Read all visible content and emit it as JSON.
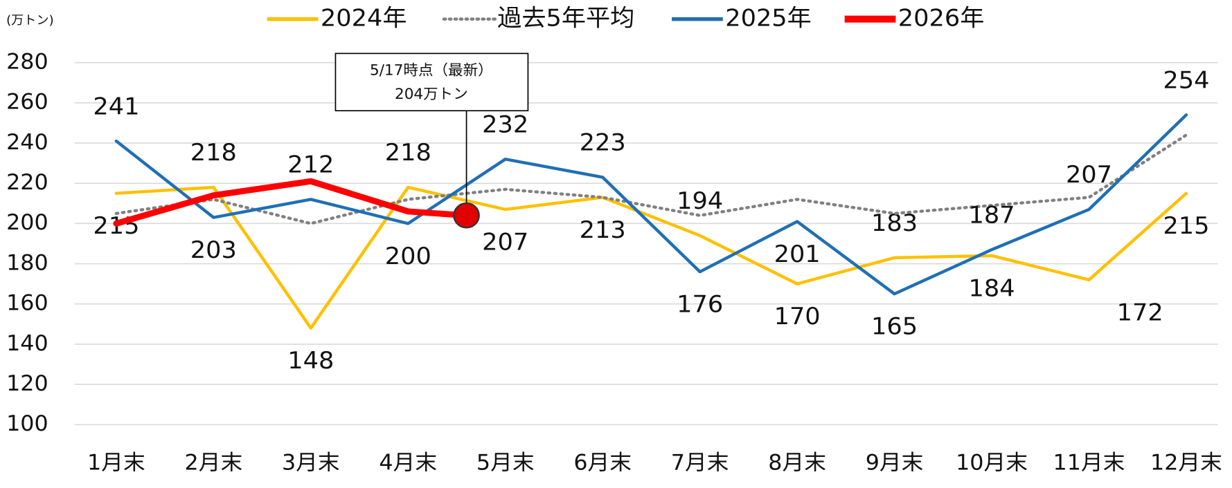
{
  "chart_data": {
    "type": "line",
    "unit_label": "(万トン)",
    "categories": [
      "1月末",
      "2月末",
      "3月末",
      "4月末",
      "5月末",
      "6月末",
      "7月末",
      "8月末",
      "9月末",
      "10月末",
      "11月末",
      "12月末"
    ],
    "series": [
      {
        "name": "2024年",
        "color": "#ffc000",
        "values": [
          215,
          218,
          148,
          218,
          207,
          213,
          194,
          170,
          183,
          184,
          172,
          215
        ]
      },
      {
        "name": "過去5年平均",
        "color": "#808080",
        "style": "dotted",
        "values": [
          205,
          212,
          200,
          212,
          217,
          213,
          204,
          212,
          205,
          209,
          213,
          244
        ]
      },
      {
        "name": "2025年",
        "color": "#1f6fb5",
        "values": [
          241,
          203,
          212,
          200,
          232,
          223,
          176,
          201,
          165,
          187,
          207,
          254
        ]
      },
      {
        "name": "2026年",
        "color": "#ff0000",
        "values": [
          200,
          214,
          221,
          206,
          null,
          null,
          null,
          null,
          null,
          null,
          null,
          null
        ]
      }
    ],
    "annotation": {
      "text": [
        "5/17時点（最新）",
        "204万トン"
      ],
      "value": 204
    },
    "ylim": [
      100,
      280
    ],
    "yticks": [
      100,
      120,
      140,
      160,
      180,
      200,
      220,
      240,
      260,
      280
    ],
    "grid": true
  }
}
